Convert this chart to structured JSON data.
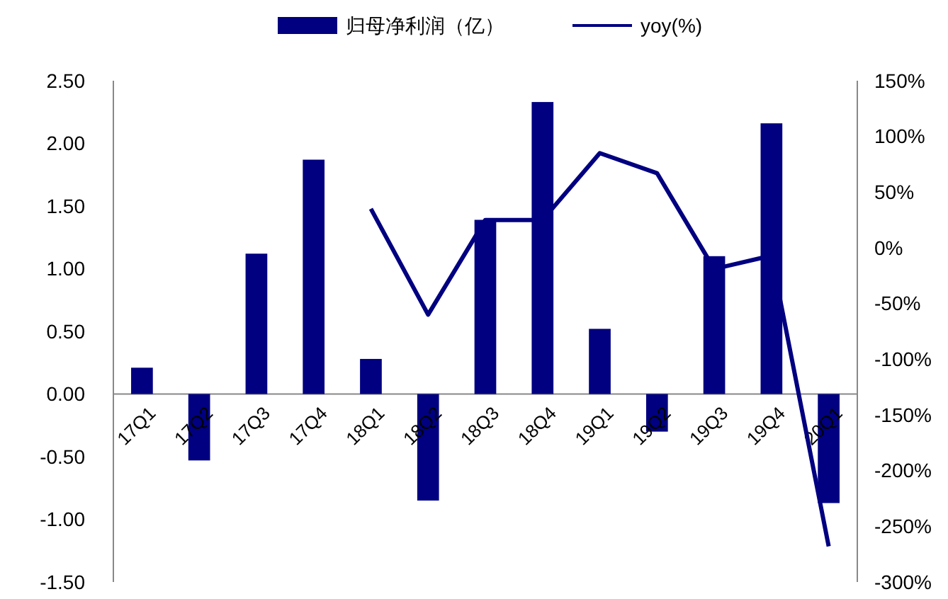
{
  "chart_data": {
    "type": "bar",
    "categories": [
      "17Q1",
      "17Q2",
      "17Q3",
      "17Q4",
      "18Q1",
      "18Q2",
      "18Q3",
      "18Q4",
      "19Q1",
      "19Q2",
      "19Q3",
      "19Q4",
      "20Q1"
    ],
    "series": [
      {
        "name": "归母净利润（亿）",
        "color": "#000080",
        "values": [
          0.21,
          -0.53,
          1.12,
          1.87,
          0.28,
          -0.85,
          1.39,
          2.33,
          0.52,
          -0.3,
          1.1,
          2.16,
          -0.87
        ]
      },
      {
        "name": "yoy(%)",
        "type": "line",
        "axis": "y2",
        "color": "#000080",
        "values": [
          null,
          null,
          null,
          null,
          35,
          -60,
          25,
          25,
          85,
          67,
          -19,
          -7,
          -268
        ]
      }
    ],
    "ylim": [
      -1.5,
      2.5
    ],
    "yticks": [
      {
        "value": -1.5,
        "label": "-1.50"
      },
      {
        "value": -1,
        "label": "-1.00"
      },
      {
        "value": -0.5,
        "label": "-0.50"
      },
      {
        "value": 0,
        "label": "0.00"
      },
      {
        "value": 0.5,
        "label": "0.50"
      },
      {
        "value": 1,
        "label": "1.00"
      },
      {
        "value": 1.5,
        "label": "1.50"
      },
      {
        "value": 2,
        "label": "2.00"
      },
      {
        "value": 2.5,
        "label": "2.50"
      }
    ],
    "y2lim": [
      -300,
      150
    ],
    "y2ticks": [
      {
        "value": -300,
        "label": "-300%"
      },
      {
        "value": -250,
        "label": "-250%"
      },
      {
        "value": -200,
        "label": "-200%"
      },
      {
        "value": -150,
        "label": "-150%"
      },
      {
        "value": -100,
        "label": "-100%"
      },
      {
        "value": -50,
        "label": "-50%"
      },
      {
        "value": 0,
        "label": "0%"
      },
      {
        "value": 50,
        "label": "50%"
      },
      {
        "value": 100,
        "label": "100%"
      },
      {
        "value": 150,
        "label": "150%"
      }
    ],
    "legend": "top",
    "grid": false,
    "marker": "none"
  }
}
